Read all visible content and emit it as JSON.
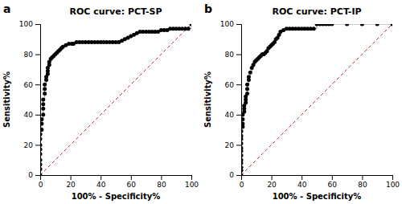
{
  "chart_data": [
    {
      "type": "scatter",
      "title": "ROC curve: PCT-SP",
      "annotation": "a",
      "xlabel": "100% - Specificity%",
      "ylabel": "Sensitivity%",
      "xlim": [
        0,
        100
      ],
      "ylim": [
        0,
        100
      ],
      "xticks": [
        0,
        20,
        40,
        60,
        80,
        100
      ],
      "yticks": [
        0,
        20,
        40,
        60,
        80,
        100
      ],
      "grid": false,
      "color": "#000000",
      "marker": "circle",
      "line_style": "step",
      "x": [
        0,
        0,
        0,
        0,
        0,
        0,
        0,
        0,
        0,
        1,
        1,
        1,
        2,
        2,
        2,
        2,
        3,
        3,
        3,
        4,
        4,
        5,
        5,
        5,
        6,
        6,
        7,
        8,
        9,
        10,
        11,
        12,
        13,
        14,
        15,
        17,
        19,
        21,
        22,
        24,
        26,
        28,
        30,
        32,
        34,
        36,
        38,
        40,
        42,
        44,
        46,
        48,
        50,
        52,
        54,
        56,
        58,
        60,
        62,
        64,
        66,
        68,
        70,
        72,
        74,
        76,
        78,
        80,
        82,
        84,
        86,
        88,
        90,
        92,
        94,
        96,
        98,
        100
      ],
      "values": [
        0,
        4,
        7,
        10,
        14,
        17,
        20,
        24,
        27,
        30,
        34,
        37,
        40,
        44,
        47,
        50,
        54,
        57,
        60,
        63,
        65,
        67,
        69,
        71,
        73,
        75,
        77,
        78,
        79,
        80,
        81,
        82,
        83,
        84,
        85,
        86,
        87,
        87,
        87,
        88,
        88,
        88,
        88,
        88,
        88,
        88,
        88,
        88,
        88,
        88,
        88,
        88,
        88,
        88,
        89,
        90,
        91,
        92,
        93,
        94,
        95,
        95,
        95,
        95,
        95,
        95,
        95,
        96,
        96,
        96,
        97,
        97,
        97,
        97,
        97,
        97,
        97,
        100
      ]
    },
    {
      "type": "scatter",
      "title": "ROC curve: PCT-IP",
      "annotation": "b",
      "xlabel": "100% - Specificity%",
      "ylabel": "Sensitivity%",
      "xlim": [
        0,
        100
      ],
      "ylim": [
        0,
        100
      ],
      "xticks": [
        0,
        20,
        40,
        60,
        80,
        100
      ],
      "yticks": [
        0,
        20,
        40,
        60,
        80,
        100
      ],
      "grid": false,
      "color": "#000000",
      "marker": "circle",
      "line_style": "step",
      "x": [
        0,
        0,
        0,
        0,
        0,
        0,
        0,
        0,
        0,
        0,
        0,
        0,
        1,
        1,
        1,
        1,
        2,
        2,
        2,
        3,
        3,
        3,
        4,
        4,
        4,
        5,
        5,
        6,
        7,
        8,
        9,
        10,
        11,
        12,
        13,
        14,
        15,
        16,
        17,
        18,
        19,
        20,
        21,
        22,
        23,
        24,
        25,
        26,
        28,
        30,
        32,
        34,
        36,
        38,
        40,
        42,
        44,
        46,
        48,
        50,
        52,
        54,
        56,
        58,
        60,
        70,
        80,
        90,
        100
      ],
      "values": [
        0,
        3,
        5,
        8,
        10,
        13,
        16,
        18,
        21,
        24,
        26,
        29,
        32,
        34,
        37,
        40,
        42,
        44,
        46,
        48,
        50,
        52,
        54,
        57,
        60,
        63,
        65,
        68,
        71,
        73,
        75,
        76,
        77,
        78,
        79,
        80,
        80,
        81,
        82,
        84,
        85,
        86,
        87,
        88,
        90,
        91,
        93,
        95,
        96,
        97,
        97,
        97,
        97,
        97,
        97,
        97,
        97,
        97,
        97,
        100,
        100,
        100,
        100,
        100,
        100,
        100,
        100,
        100,
        100
      ]
    }
  ]
}
